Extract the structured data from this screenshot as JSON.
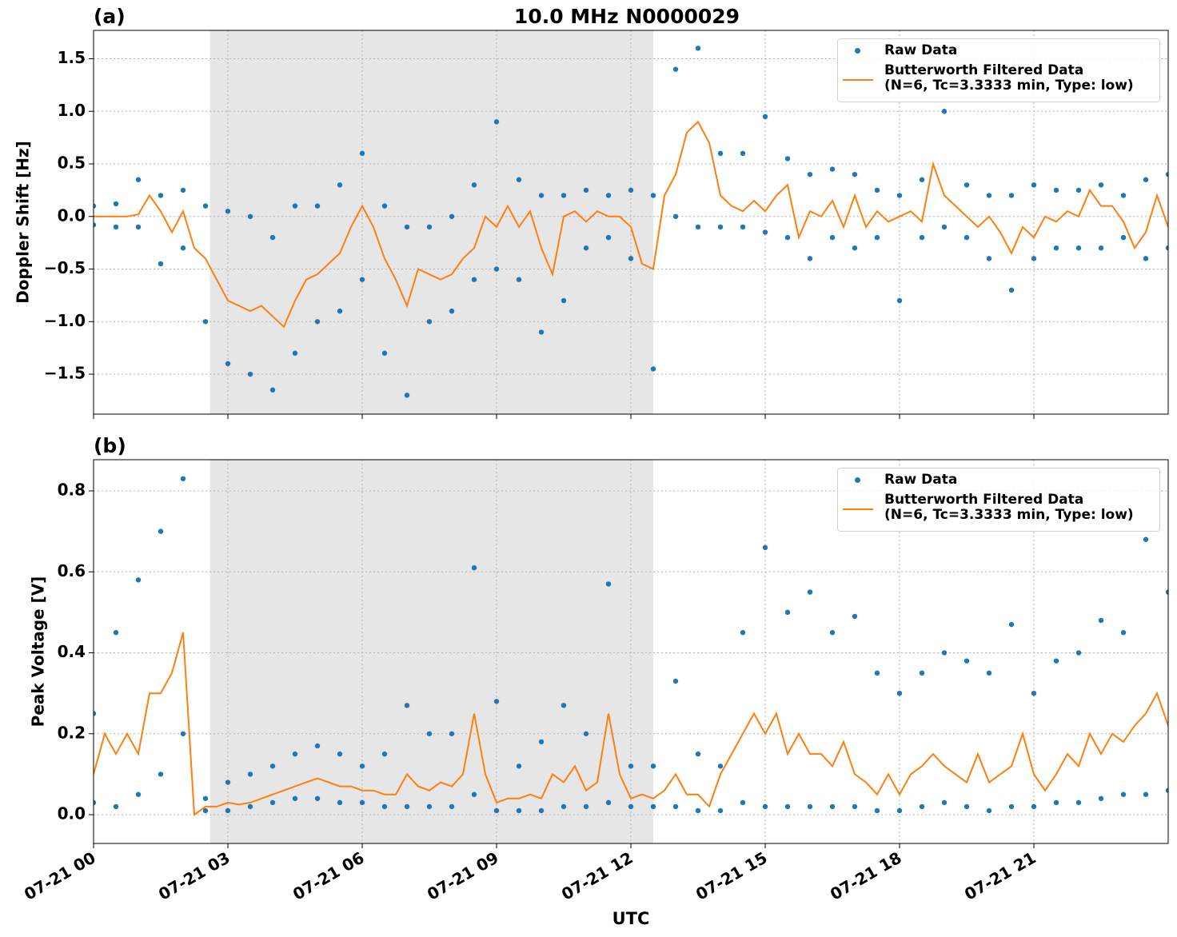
{
  "chart_data": [
    {
      "type": "line",
      "title": "10.0 MHz N0000029",
      "panel_label": "(a)",
      "ylabel": "Doppler Shift [Hz]",
      "xlim": [
        0,
        24
      ],
      "xticks": [
        0,
        3,
        6,
        9,
        12,
        15,
        18,
        21
      ],
      "ylim": [
        -1.88,
        1.77
      ],
      "yticks": [
        {
          "value": -1.5,
          "label": "−1.5"
        },
        {
          "value": -1.0,
          "label": "−1.0"
        },
        {
          "value": -0.5,
          "label": "−0.5"
        },
        {
          "value": 0,
          "label": "0.0"
        },
        0.5,
        {
          "value": 1.0,
          "label": "1.0"
        },
        1.5
      ],
      "grid": true,
      "legend": "upper right",
      "shade": [
        2.6,
        12.5
      ],
      "shade_color": "#e6e6e6",
      "series": [
        {
          "name": "Raw Data",
          "style": "markers",
          "color": "#1f77b4",
          "x": [
            0,
            0,
            0.5,
            0.5,
            1,
            1,
            1.5,
            1.5,
            2,
            2,
            2.5,
            2.5,
            3,
            3,
            3.5,
            3.5,
            4,
            4,
            4.5,
            4.5,
            5,
            5,
            5.5,
            5.5,
            6,
            6,
            6.5,
            6.5,
            7,
            7,
            7.5,
            7.5,
            8,
            8,
            8.5,
            8.5,
            9,
            9,
            9.5,
            9.5,
            10,
            10,
            10.5,
            10.5,
            11,
            11,
            11.5,
            11.5,
            12,
            12,
            12.5,
            12.5,
            13,
            13,
            13.5,
            13.5,
            14,
            14,
            14.5,
            14.5,
            15,
            15,
            15.5,
            15.5,
            16,
            16,
            16.5,
            16.5,
            17,
            17,
            17.5,
            17.5,
            18,
            18,
            18.5,
            18.5,
            19,
            19,
            19.5,
            19.5,
            20,
            20,
            20.5,
            20.5,
            21,
            21,
            21.5,
            21.5,
            22,
            22,
            22.5,
            22.5,
            23,
            23,
            23.5,
            23.5,
            24,
            24
          ],
          "values": [
            -0.08,
            0.1,
            -0.1,
            0.12,
            -0.1,
            0.35,
            -0.45,
            0.2,
            -0.3,
            0.25,
            -1.0,
            0.1,
            -1.4,
            0.05,
            -1.5,
            0.0,
            -1.65,
            -0.2,
            -1.3,
            0.1,
            -1.0,
            0.1,
            -0.9,
            0.3,
            -0.6,
            0.6,
            -1.3,
            0.1,
            -1.7,
            -0.1,
            -1.0,
            -0.1,
            -0.9,
            0.0,
            -0.6,
            0.3,
            -0.5,
            0.9,
            -0.6,
            0.35,
            -1.1,
            0.2,
            -0.8,
            0.2,
            -0.3,
            0.25,
            -0.2,
            0.2,
            -0.4,
            0.25,
            -1.45,
            0.2,
            0.0,
            1.4,
            -0.1,
            1.6,
            -0.1,
            0.6,
            -0.1,
            0.6,
            -0.15,
            0.95,
            -0.2,
            0.55,
            -0.4,
            0.4,
            -0.2,
            0.45,
            -0.3,
            0.4,
            -0.2,
            0.25,
            -0.8,
            0.2,
            -0.2,
            0.35,
            -0.1,
            1.0,
            -0.2,
            0.3,
            -0.4,
            0.2,
            -0.7,
            0.2,
            -0.4,
            0.3,
            -0.3,
            0.25,
            -0.3,
            0.25,
            -0.3,
            0.3,
            -0.2,
            0.2,
            -0.4,
            0.35,
            -0.3,
            0.4
          ]
        },
        {
          "name": "Butterworth Filtered Data\n(N=6, Tc=3.3333 min, Type: low)",
          "style": "line",
          "color": "#ff7f0e",
          "x": [
            0,
            0.25,
            0.5,
            0.75,
            1,
            1.25,
            1.5,
            1.75,
            2,
            2.25,
            2.5,
            2.75,
            3,
            3.25,
            3.5,
            3.75,
            4,
            4.25,
            4.5,
            4.75,
            5,
            5.25,
            5.5,
            5.75,
            6,
            6.25,
            6.5,
            6.75,
            7,
            7.25,
            7.5,
            7.75,
            8,
            8.25,
            8.5,
            8.75,
            9,
            9.25,
            9.5,
            9.75,
            10,
            10.25,
            10.5,
            10.75,
            11,
            11.25,
            11.5,
            11.75,
            12,
            12.25,
            12.5,
            12.75,
            13,
            13.25,
            13.5,
            13.75,
            14,
            14.25,
            14.5,
            14.75,
            15,
            15.25,
            15.5,
            15.75,
            16,
            16.25,
            16.5,
            16.75,
            17,
            17.25,
            17.5,
            17.75,
            18,
            18.25,
            18.5,
            18.75,
            19,
            19.25,
            19.5,
            19.75,
            20,
            20.25,
            20.5,
            20.75,
            21,
            21.25,
            21.5,
            21.75,
            22,
            22.25,
            22.5,
            22.75,
            23,
            23.25,
            23.5,
            23.75,
            24
          ],
          "values": [
            0,
            0,
            0,
            0,
            0.02,
            0.2,
            0.05,
            -0.15,
            0.05,
            -0.3,
            -0.4,
            -0.6,
            -0.8,
            -0.85,
            -0.9,
            -0.85,
            -0.95,
            -1.05,
            -0.8,
            -0.6,
            -0.55,
            -0.45,
            -0.35,
            -0.1,
            0.1,
            -0.1,
            -0.4,
            -0.6,
            -0.85,
            -0.5,
            -0.55,
            -0.6,
            -0.55,
            -0.4,
            -0.3,
            0.0,
            -0.1,
            0.1,
            -0.1,
            0.05,
            -0.3,
            -0.55,
            0.0,
            0.05,
            -0.05,
            0.05,
            0.0,
            0.0,
            -0.1,
            -0.45,
            -0.5,
            0.2,
            0.4,
            0.8,
            0.9,
            0.7,
            0.2,
            0.1,
            0.05,
            0.15,
            0.05,
            0.2,
            0.3,
            -0.2,
            0.05,
            0.0,
            0.15,
            -0.1,
            0.2,
            -0.1,
            0.05,
            -0.05,
            0.0,
            0.05,
            -0.05,
            0.5,
            0.2,
            0.1,
            0.0,
            -0.1,
            0.0,
            -0.15,
            -0.35,
            -0.1,
            -0.2,
            0.0,
            -0.05,
            0.05,
            0.0,
            0.25,
            0.1,
            0.1,
            -0.05,
            -0.3,
            -0.15,
            0.2,
            -0.1
          ]
        }
      ]
    },
    {
      "type": "line",
      "panel_label": "(b)",
      "ylabel": "Peak Voltage [V]",
      "xlabel": "UTC",
      "xlim": [
        0,
        24
      ],
      "xticks": [
        {
          "value": 0,
          "label": "07-21 00"
        },
        {
          "value": 3,
          "label": "07-21 03"
        },
        {
          "value": 6,
          "label": "07-21 06"
        },
        {
          "value": 9,
          "label": "07-21 09"
        },
        {
          "value": 12,
          "label": "07-21 12"
        },
        {
          "value": 15,
          "label": "07-21 15"
        },
        {
          "value": 18,
          "label": "07-21 18"
        },
        {
          "value": 21,
          "label": "07-21 21"
        }
      ],
      "ylim": [
        -0.071,
        0.877
      ],
      "yticks": [
        {
          "value": 0,
          "label": "0.0"
        },
        0.2,
        0.4,
        0.6,
        0.8
      ],
      "grid": true,
      "legend": "upper right",
      "shade": [
        2.6,
        12.5
      ],
      "shade_color": "#e6e6e6",
      "series": [
        {
          "name": "Raw Data",
          "style": "markers",
          "color": "#1f77b4",
          "x": [
            0,
            0,
            0.5,
            0.5,
            1,
            1,
            1.5,
            1.5,
            2,
            2,
            2.5,
            2.5,
            3,
            3,
            3.5,
            3.5,
            4,
            4,
            4.5,
            4.5,
            5,
            5,
            5.5,
            5.5,
            6,
            6,
            6.5,
            6.5,
            7,
            7,
            7.5,
            7.5,
            8,
            8,
            8.5,
            8.5,
            9,
            9,
            9.5,
            9.5,
            10,
            10,
            10.5,
            10.5,
            11,
            11,
            11.5,
            11.5,
            12,
            12,
            12.5,
            12.5,
            13,
            13,
            13.5,
            13.5,
            14,
            14,
            14.5,
            14.5,
            15,
            15,
            15.5,
            15.5,
            16,
            16,
            16.5,
            16.5,
            17,
            17,
            17.5,
            17.5,
            18,
            18,
            18.5,
            18.5,
            19,
            19,
            19.5,
            19.5,
            20,
            20,
            20.5,
            20.5,
            21,
            21,
            21.5,
            21.5,
            22,
            22,
            22.5,
            22.5,
            23,
            23,
            23.5,
            23.5,
            24,
            24
          ],
          "values": [
            0.03,
            0.25,
            0.02,
            0.45,
            0.05,
            0.58,
            0.1,
            0.7,
            0.2,
            0.83,
            0.01,
            0.04,
            0.01,
            0.08,
            0.02,
            0.1,
            0.03,
            0.12,
            0.04,
            0.15,
            0.04,
            0.17,
            0.03,
            0.15,
            0.03,
            0.12,
            0.02,
            0.15,
            0.02,
            0.27,
            0.02,
            0.2,
            0.02,
            0.2,
            0.05,
            0.61,
            0.01,
            0.28,
            0.01,
            0.12,
            0.01,
            0.18,
            0.02,
            0.27,
            0.02,
            0.2,
            0.03,
            0.57,
            0.02,
            0.12,
            0.02,
            0.12,
            0.02,
            0.33,
            0.01,
            0.15,
            0.01,
            0.12,
            0.03,
            0.45,
            0.02,
            0.66,
            0.02,
            0.5,
            0.02,
            0.55,
            0.02,
            0.45,
            0.02,
            0.49,
            0.01,
            0.35,
            0.01,
            0.3,
            0.02,
            0.35,
            0.03,
            0.4,
            0.02,
            0.38,
            0.01,
            0.35,
            0.02,
            0.47,
            0.02,
            0.3,
            0.03,
            0.38,
            0.03,
            0.4,
            0.04,
            0.48,
            0.05,
            0.45,
            0.05,
            0.68,
            0.06,
            0.55
          ]
        },
        {
          "name": "Butterworth Filtered Data\n(N=6, Tc=3.3333 min, Type: low)",
          "style": "line",
          "color": "#ff7f0e",
          "x": [
            0,
            0.25,
            0.5,
            0.75,
            1,
            1.25,
            1.5,
            1.75,
            2,
            2.25,
            2.5,
            2.75,
            3,
            3.25,
            3.5,
            3.75,
            4,
            4.25,
            4.5,
            4.75,
            5,
            5.25,
            5.5,
            5.75,
            6,
            6.25,
            6.5,
            6.75,
            7,
            7.25,
            7.5,
            7.75,
            8,
            8.25,
            8.5,
            8.75,
            9,
            9.25,
            9.5,
            9.75,
            10,
            10.25,
            10.5,
            10.75,
            11,
            11.25,
            11.5,
            11.75,
            12,
            12.25,
            12.5,
            12.75,
            13,
            13.25,
            13.5,
            13.75,
            14,
            14.25,
            14.5,
            14.75,
            15,
            15.25,
            15.5,
            15.75,
            16,
            16.25,
            16.5,
            16.75,
            17,
            17.25,
            17.5,
            17.75,
            18,
            18.25,
            18.5,
            18.75,
            19,
            19.25,
            19.5,
            19.75,
            20,
            20.25,
            20.5,
            20.75,
            21,
            21.25,
            21.5,
            21.75,
            22,
            22.25,
            22.5,
            22.75,
            23,
            23.25,
            23.5,
            23.75,
            24
          ],
          "values": [
            0.1,
            0.2,
            0.15,
            0.2,
            0.15,
            0.3,
            0.3,
            0.35,
            0.45,
            0.0,
            0.02,
            0.02,
            0.03,
            0.025,
            0.03,
            0.04,
            0.05,
            0.06,
            0.07,
            0.08,
            0.09,
            0.08,
            0.07,
            0.07,
            0.06,
            0.06,
            0.05,
            0.05,
            0.1,
            0.07,
            0.06,
            0.08,
            0.07,
            0.1,
            0.25,
            0.1,
            0.03,
            0.04,
            0.04,
            0.05,
            0.04,
            0.1,
            0.08,
            0.12,
            0.06,
            0.08,
            0.25,
            0.1,
            0.04,
            0.05,
            0.04,
            0.06,
            0.1,
            0.05,
            0.05,
            0.02,
            0.1,
            0.15,
            0.2,
            0.25,
            0.2,
            0.25,
            0.15,
            0.2,
            0.15,
            0.15,
            0.12,
            0.18,
            0.1,
            0.08,
            0.05,
            0.1,
            0.05,
            0.1,
            0.12,
            0.15,
            0.12,
            0.1,
            0.08,
            0.15,
            0.08,
            0.1,
            0.12,
            0.2,
            0.1,
            0.06,
            0.1,
            0.15,
            0.12,
            0.2,
            0.15,
            0.2,
            0.18,
            0.22,
            0.25,
            0.3,
            0.22
          ]
        }
      ]
    }
  ]
}
